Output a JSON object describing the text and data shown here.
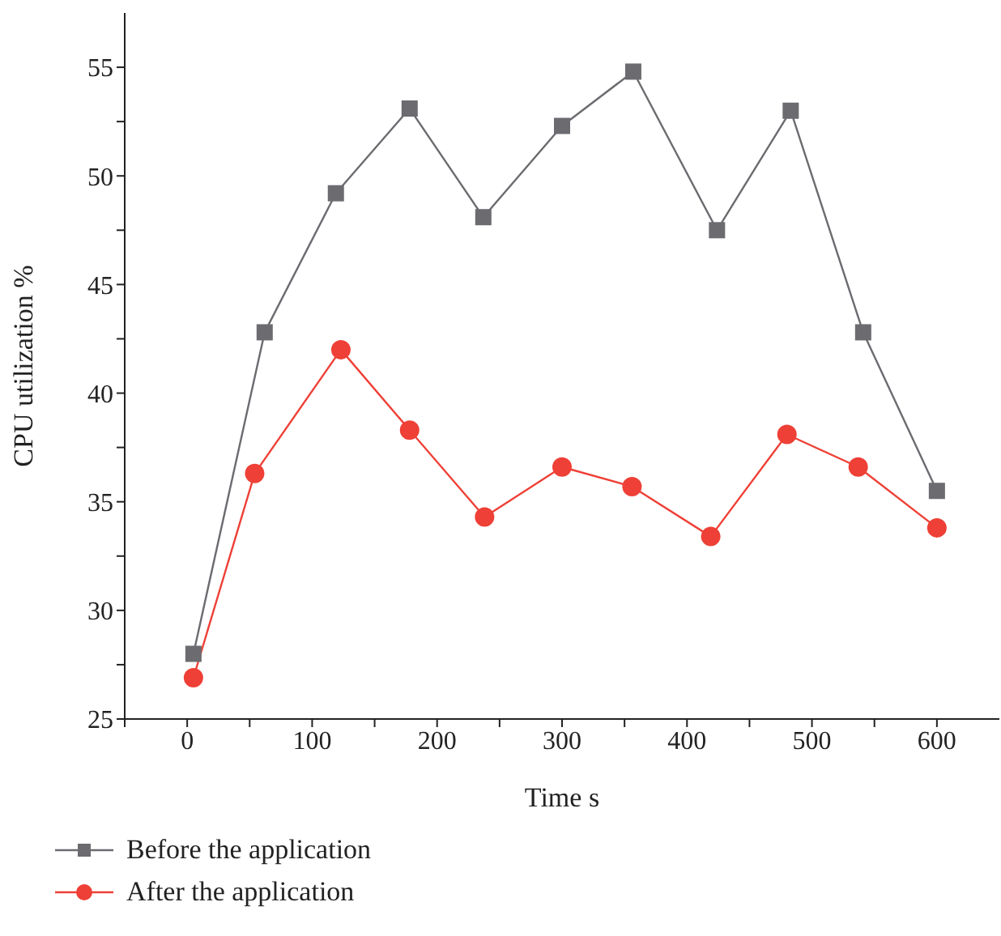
{
  "chart_data": {
    "type": "line",
    "xlabel": "Time s",
    "ylabel": "CPU utilization %",
    "xlim": [
      -50,
      650
    ],
    "xticks": [
      {
        "value": -50,
        "label": null
      },
      0,
      {
        "value": 50,
        "label": null
      },
      100,
      {
        "value": 150,
        "label": null
      },
      200,
      {
        "value": 250,
        "label": null
      },
      300,
      {
        "value": 350,
        "label": null
      },
      400,
      {
        "value": 450,
        "label": null
      },
      500,
      {
        "value": 550,
        "label": null
      },
      600
    ],
    "ylim": [
      25,
      57.5
    ],
    "yticks": [
      25,
      {
        "value": 27.5,
        "label": null
      },
      30,
      {
        "value": 32.5,
        "label": null
      },
      35,
      {
        "value": 37.5,
        "label": null
      },
      40,
      {
        "value": 42.5,
        "label": null
      },
      45,
      {
        "value": 47.5,
        "label": null
      },
      50,
      {
        "value": 52.5,
        "label": null
      },
      55
    ],
    "grid": false,
    "legend": "bottom left",
    "line_style": "solid",
    "series": [
      {
        "name": "Before the application",
        "color": "#6b6b70",
        "marker": "square",
        "x": [
          5,
          62,
          119,
          178,
          237,
          300,
          357,
          424,
          483,
          541,
          600
        ],
        "values": [
          28.0,
          42.8,
          49.2,
          53.1,
          48.1,
          52.3,
          54.8,
          47.5,
          53.0,
          42.8,
          35.5
        ]
      },
      {
        "name": "After the application",
        "color": "#ee4036",
        "marker": "circle",
        "x": [
          5,
          54,
          123,
          178,
          238,
          300,
          356,
          419,
          480,
          537,
          600
        ],
        "values": [
          26.9,
          36.3,
          42.0,
          38.3,
          34.3,
          36.6,
          35.7,
          33.4,
          38.1,
          36.6,
          33.8
        ]
      }
    ]
  }
}
